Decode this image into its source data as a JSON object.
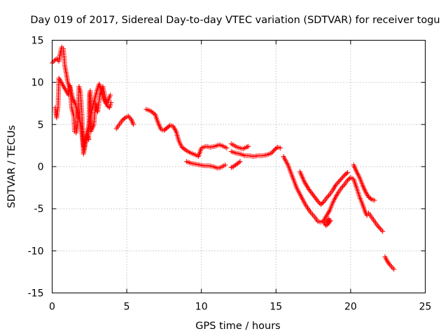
{
  "chart_data": {
    "type": "scatter",
    "title": "Day 019 of 2017, Sidereal Day-to-day VTEC variation (SDTVAR) for receiver togu",
    "xlabel": "GPS time / hours",
    "ylabel": "SDTVAR / TECUs",
    "xlim": [
      0,
      25
    ],
    "ylim": [
      -15,
      15
    ],
    "xticks": [
      0,
      5,
      10,
      15,
      20,
      25
    ],
    "yticks": [
      -15,
      -10,
      -5,
      0,
      5,
      10,
      15
    ],
    "grid": true,
    "marker": "+",
    "color": "#ff0000",
    "segments": [
      {
        "name": "early-dense",
        "points": [
          [
            0.0,
            12.3
          ],
          [
            0.15,
            12.6
          ],
          [
            0.3,
            12.8
          ],
          [
            0.45,
            12.5
          ],
          [
            0.55,
            13.5
          ],
          [
            0.65,
            14.2
          ],
          [
            0.75,
            14.0
          ],
          [
            0.85,
            12.0
          ],
          [
            0.95,
            11.0
          ],
          [
            1.05,
            10.0
          ],
          [
            1.15,
            9.5
          ],
          [
            1.25,
            9.0
          ],
          [
            1.4,
            8.0
          ],
          [
            1.55,
            7.5
          ],
          [
            1.7,
            6.5
          ],
          [
            1.85,
            5.5
          ],
          [
            1.95,
            4.5
          ],
          [
            2.05,
            3.0
          ],
          [
            2.15,
            2.0
          ],
          [
            2.25,
            3.5
          ],
          [
            2.4,
            4.5
          ],
          [
            2.55,
            5.5
          ],
          [
            2.7,
            7.0
          ],
          [
            2.85,
            8.0
          ],
          [
            3.0,
            9.0
          ],
          [
            3.15,
            9.8
          ],
          [
            3.3,
            9.0
          ],
          [
            3.45,
            8.0
          ],
          [
            3.6,
            7.5
          ],
          [
            3.75,
            7.8
          ],
          [
            3.9,
            8.5
          ]
        ]
      },
      {
        "name": "early-scatter",
        "points": [
          [
            0.2,
            7.0
          ],
          [
            0.25,
            6.2
          ],
          [
            0.3,
            5.8
          ],
          [
            0.35,
            6.5
          ],
          [
            0.4,
            7.2
          ],
          [
            0.45,
            10.5
          ],
          [
            1.1,
            8.5
          ],
          [
            1.2,
            9.6
          ],
          [
            1.3,
            7.0
          ],
          [
            1.45,
            6.0
          ],
          [
            1.5,
            4.2
          ],
          [
            1.6,
            4.0
          ],
          [
            1.7,
            5.0
          ],
          [
            1.8,
            9.5
          ],
          [
            1.9,
            8.8
          ],
          [
            2.0,
            6.0
          ],
          [
            2.1,
            1.5
          ],
          [
            2.2,
            2.5
          ],
          [
            2.3,
            3.8
          ],
          [
            2.45,
            3.2
          ],
          [
            2.5,
            8.5
          ],
          [
            2.55,
            9.0
          ],
          [
            2.6,
            4.2
          ],
          [
            2.8,
            5.0
          ],
          [
            2.9,
            7.5
          ],
          [
            3.05,
            6.5
          ],
          [
            3.2,
            8.5
          ],
          [
            3.4,
            9.5
          ],
          [
            3.55,
            8.2
          ],
          [
            3.7,
            7.2
          ],
          [
            3.85,
            7.0
          ],
          [
            3.95,
            7.6
          ]
        ]
      },
      {
        "name": "segment-5h",
        "points": [
          [
            4.3,
            4.5
          ],
          [
            4.5,
            5.0
          ],
          [
            4.7,
            5.5
          ],
          [
            4.9,
            5.8
          ],
          [
            5.1,
            6.0
          ],
          [
            5.3,
            5.6
          ],
          [
            5.45,
            5.0
          ]
        ]
      },
      {
        "name": "segment-6to12h",
        "points": [
          [
            6.3,
            6.8
          ],
          [
            6.6,
            6.6
          ],
          [
            6.9,
            6.2
          ],
          [
            7.1,
            5.2
          ],
          [
            7.3,
            4.4
          ],
          [
            7.5,
            4.3
          ],
          [
            7.7,
            4.6
          ],
          [
            7.9,
            4.9
          ],
          [
            8.1,
            4.8
          ],
          [
            8.3,
            4.2
          ],
          [
            8.5,
            3.0
          ],
          [
            8.7,
            2.3
          ],
          [
            9.0,
            1.9
          ],
          [
            9.3,
            1.6
          ],
          [
            9.6,
            1.4
          ],
          [
            9.8,
            1.2
          ],
          [
            10.0,
            2.2
          ],
          [
            10.3,
            2.4
          ],
          [
            10.6,
            2.3
          ],
          [
            10.9,
            2.4
          ],
          [
            11.2,
            2.6
          ],
          [
            11.5,
            2.4
          ],
          [
            11.7,
            2.2
          ]
        ]
      },
      {
        "name": "segment-lower-9to12h",
        "points": [
          [
            9.0,
            0.6
          ],
          [
            9.3,
            0.4
          ],
          [
            9.6,
            0.3
          ],
          [
            9.9,
            0.2
          ],
          [
            10.2,
            0.1
          ],
          [
            10.5,
            0.1
          ],
          [
            10.8,
            0.0
          ],
          [
            11.1,
            -0.2
          ],
          [
            11.3,
            -0.1
          ],
          [
            11.5,
            0.1
          ],
          [
            11.6,
            0.2
          ]
        ]
      },
      {
        "name": "segment-12to15h",
        "points": [
          [
            12.0,
            1.8
          ],
          [
            12.3,
            1.6
          ],
          [
            12.6,
            1.5
          ],
          [
            12.9,
            1.3
          ],
          [
            13.2,
            1.3
          ],
          [
            13.5,
            1.2
          ],
          [
            13.8,
            1.3
          ],
          [
            14.1,
            1.3
          ],
          [
            14.4,
            1.4
          ],
          [
            14.7,
            1.6
          ],
          [
            14.9,
            2.0
          ],
          [
            15.1,
            2.3
          ],
          [
            15.3,
            2.2
          ]
        ]
      },
      {
        "name": "segment-upper-12to13h",
        "points": [
          [
            12.0,
            2.7
          ],
          [
            12.2,
            2.5
          ],
          [
            12.4,
            2.3
          ],
          [
            12.6,
            2.2
          ],
          [
            12.8,
            2.1
          ],
          [
            13.0,
            2.3
          ],
          [
            13.15,
            2.4
          ]
        ]
      },
      {
        "name": "segment-lower-12to13h",
        "points": [
          [
            12.0,
            -0.1
          ],
          [
            12.15,
            0.0
          ],
          [
            12.3,
            0.2
          ],
          [
            12.45,
            0.4
          ],
          [
            12.6,
            0.6
          ]
        ]
      },
      {
        "name": "segment-15to19h-a",
        "points": [
          [
            15.5,
            1.2
          ],
          [
            15.8,
            0.2
          ],
          [
            16.1,
            -1.2
          ],
          [
            16.4,
            -2.6
          ],
          [
            16.7,
            -3.6
          ],
          [
            17.0,
            -4.6
          ],
          [
            17.3,
            -5.4
          ],
          [
            17.6,
            -6.0
          ],
          [
            17.8,
            -6.5
          ],
          [
            18.0,
            -6.6
          ],
          [
            18.2,
            -6.4
          ],
          [
            18.4,
            -5.8
          ],
          [
            18.6,
            -5.2
          ],
          [
            18.8,
            -4.3
          ],
          [
            19.0,
            -3.6
          ],
          [
            19.2,
            -3.0
          ],
          [
            19.4,
            -2.5
          ],
          [
            19.6,
            -2.1
          ],
          [
            19.8,
            -1.6
          ],
          [
            20.0,
            -1.3
          ],
          [
            20.2,
            -1.5
          ],
          [
            20.4,
            -2.5
          ],
          [
            20.6,
            -3.6
          ],
          [
            20.8,
            -4.5
          ],
          [
            21.0,
            -5.5
          ],
          [
            21.1,
            -5.8
          ]
        ]
      },
      {
        "name": "segment-15to19h-b",
        "points": [
          [
            16.6,
            -0.6
          ],
          [
            16.9,
            -1.8
          ],
          [
            17.2,
            -2.7
          ],
          [
            17.5,
            -3.4
          ],
          [
            17.8,
            -4.1
          ],
          [
            18.0,
            -4.5
          ],
          [
            18.2,
            -4.2
          ],
          [
            18.4,
            -3.7
          ],
          [
            18.6,
            -3.3
          ],
          [
            18.8,
            -2.8
          ],
          [
            19.0,
            -2.2
          ],
          [
            19.2,
            -1.8
          ],
          [
            19.4,
            -1.4
          ],
          [
            19.6,
            -1.0
          ],
          [
            19.8,
            -0.7
          ]
        ]
      },
      {
        "name": "segment-18h-cluster",
        "points": [
          [
            18.2,
            -6.6
          ],
          [
            18.35,
            -7.0
          ],
          [
            18.5,
            -6.8
          ],
          [
            18.65,
            -6.4
          ],
          [
            18.4,
            -6.6
          ],
          [
            18.55,
            -6.2
          ]
        ]
      },
      {
        "name": "segment-20to22h",
        "points": [
          [
            20.2,
            0.2
          ],
          [
            20.4,
            -0.6
          ],
          [
            20.6,
            -1.3
          ],
          [
            20.8,
            -2.2
          ],
          [
            21.0,
            -3.0
          ],
          [
            21.2,
            -3.6
          ],
          [
            21.4,
            -3.9
          ],
          [
            21.6,
            -4.0
          ]
        ]
      },
      {
        "name": "segment-21to22h-tail",
        "points": [
          [
            21.2,
            -5.5
          ],
          [
            21.4,
            -6.0
          ],
          [
            21.6,
            -6.5
          ],
          [
            21.8,
            -7.0
          ],
          [
            22.0,
            -7.4
          ],
          [
            22.15,
            -7.7
          ]
        ]
      },
      {
        "name": "segment-22to23h",
        "points": [
          [
            22.3,
            -10.7
          ],
          [
            22.45,
            -11.2
          ],
          [
            22.6,
            -11.6
          ],
          [
            22.75,
            -11.9
          ],
          [
            22.9,
            -12.2
          ]
        ]
      }
    ]
  }
}
